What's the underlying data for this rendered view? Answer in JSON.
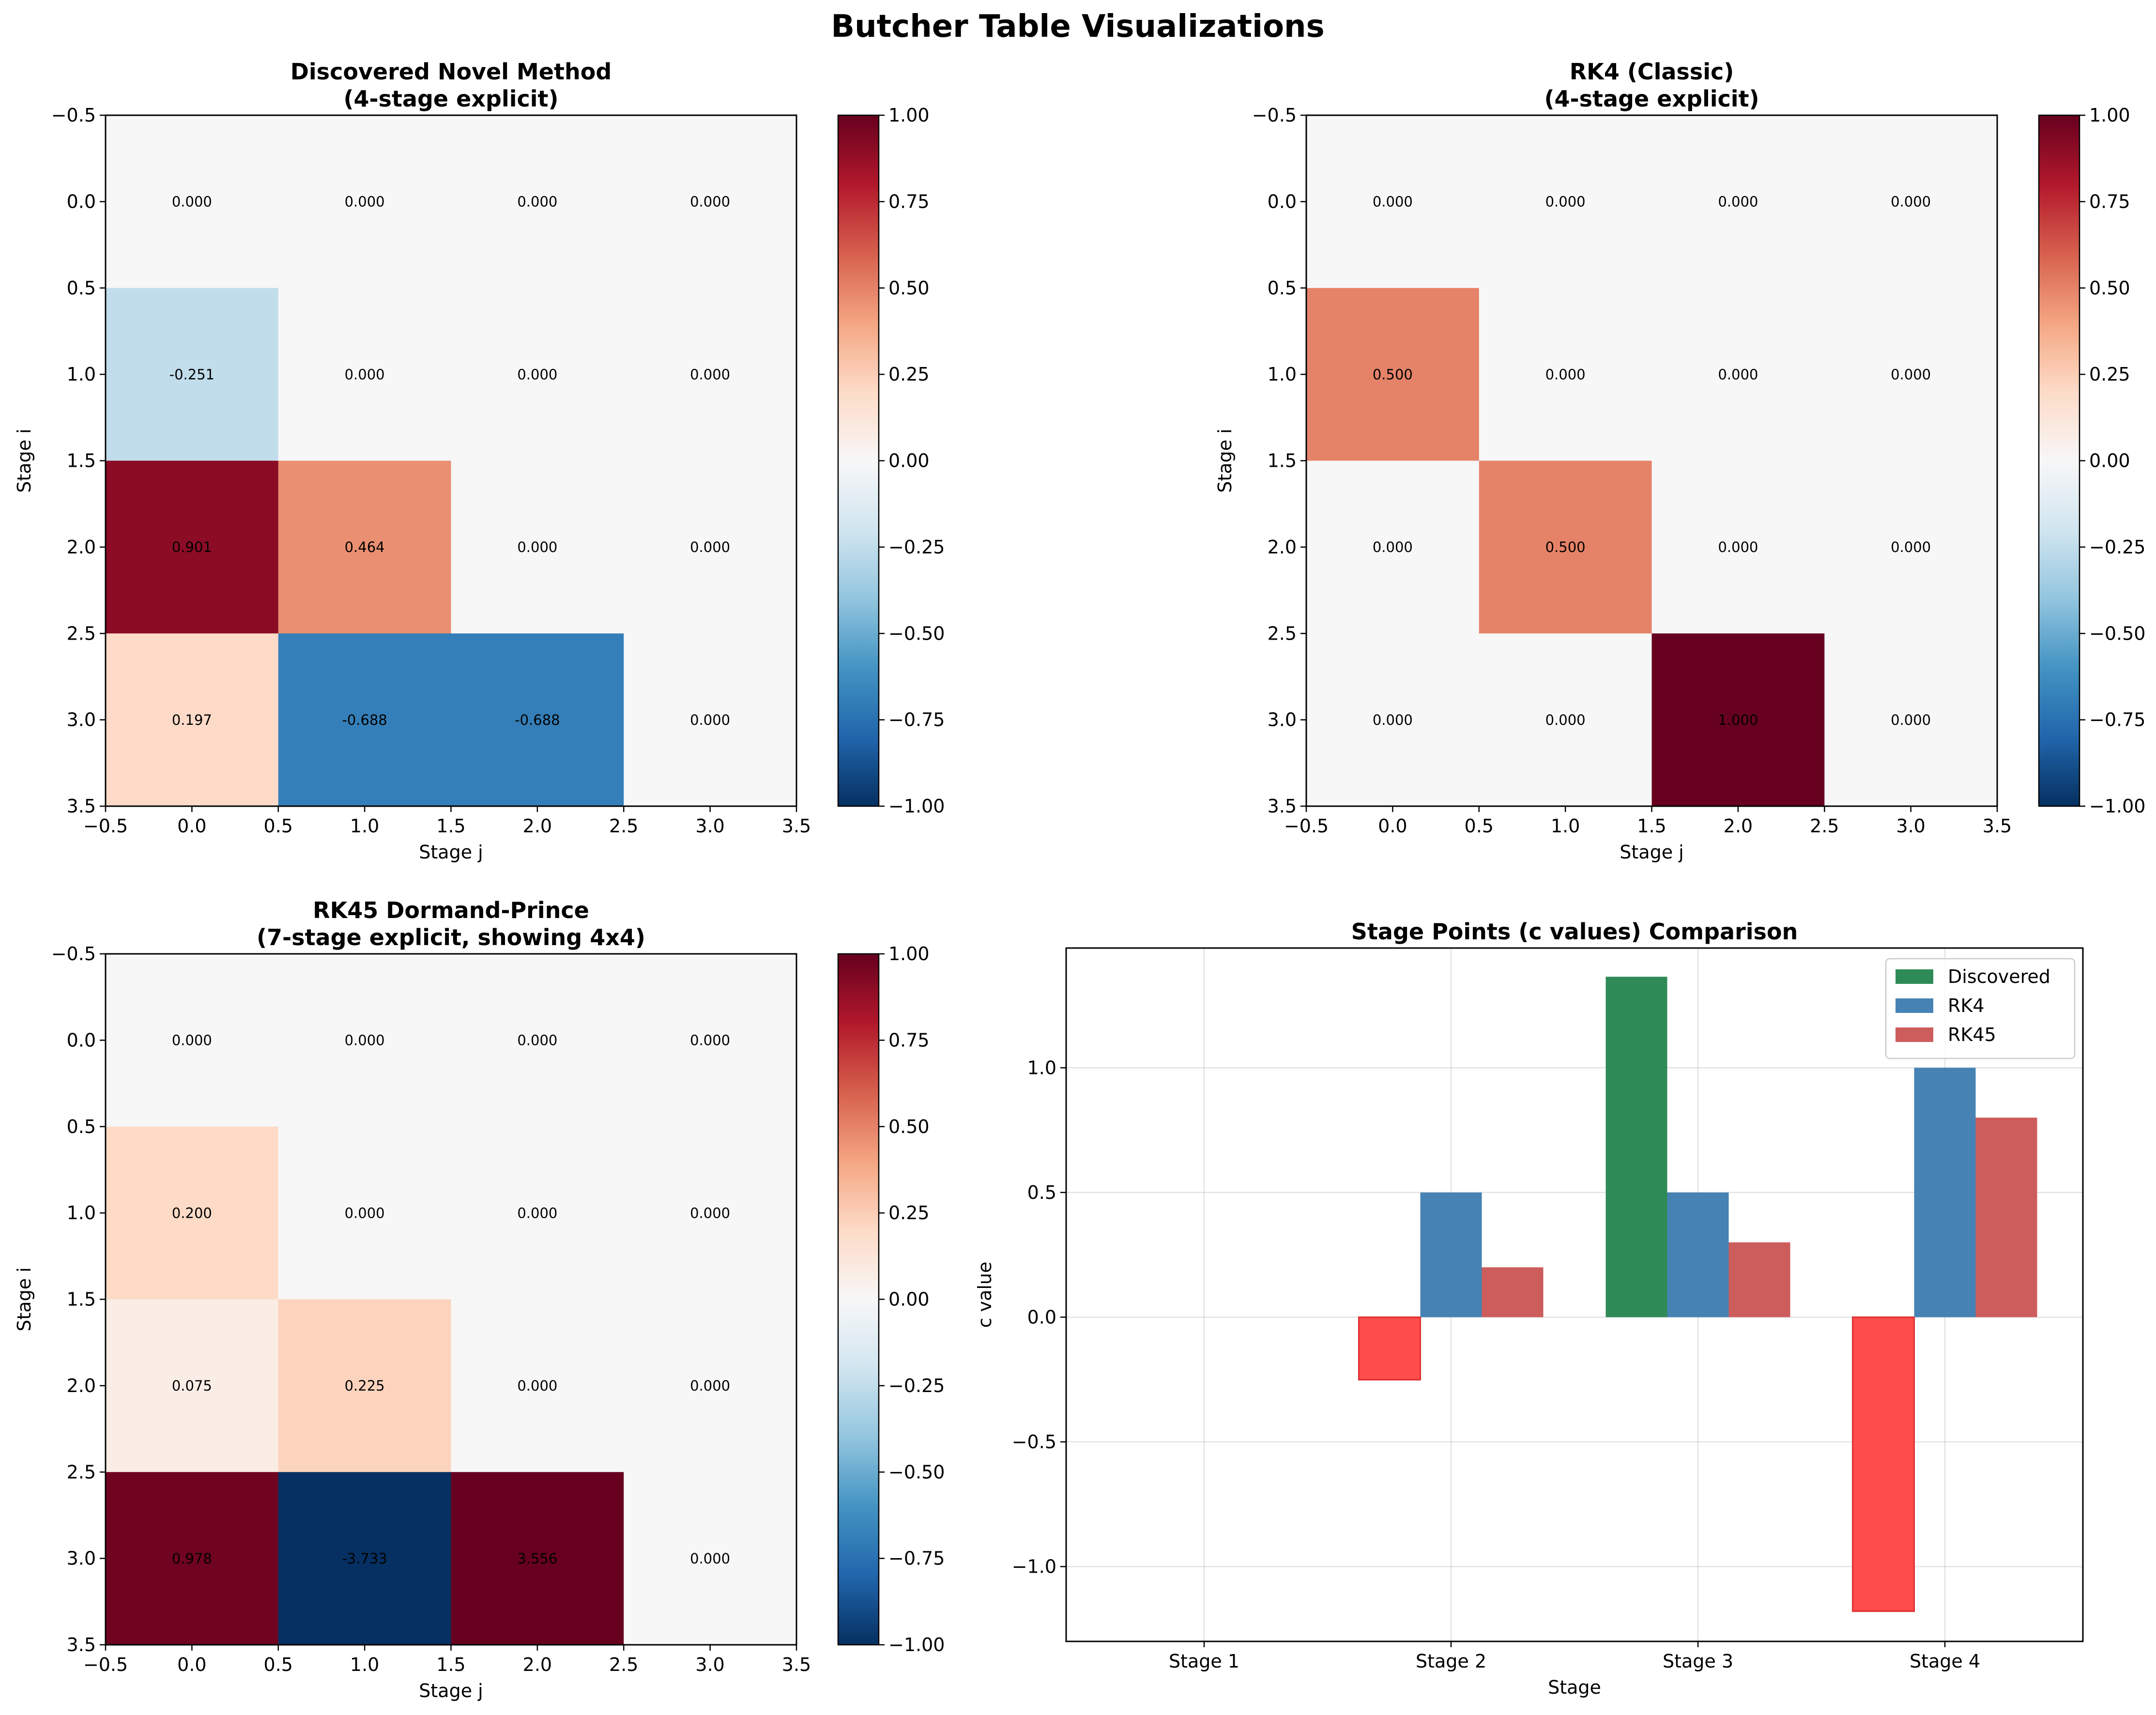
{
  "figure": {
    "suptitle": "Butcher Table Visualizations"
  },
  "colors": {
    "discovered": "#2e8b57",
    "rk4": "#4682b4",
    "rk45": "#cd5c5c",
    "discovered_negative": "#ff4c4c"
  },
  "chart_data": [
    {
      "type": "heatmap",
      "title": "Discovered Novel Method\n(4-stage explicit)",
      "xlabel": "Stage j",
      "ylabel": "Stage i",
      "matrix": [
        [
          0.0,
          0.0,
          0.0,
          0.0
        ],
        [
          -0.251,
          0.0,
          0.0,
          0.0
        ],
        [
          0.901,
          0.464,
          0.0,
          0.0
        ],
        [
          0.197,
          -0.688,
          -0.688,
          0.0
        ]
      ],
      "cell_labels": [
        [
          "0.000",
          "0.000",
          "0.000",
          "0.000"
        ],
        [
          "-0.251",
          "0.000",
          "0.000",
          "0.000"
        ],
        [
          "0.901",
          "0.464",
          "0.000",
          "0.000"
        ],
        [
          "0.197",
          "-0.688",
          "-0.688",
          "0.000"
        ]
      ],
      "x_ticks": [
        "−0.5",
        "0.0",
        "0.5",
        "1.0",
        "1.5",
        "2.0",
        "2.5",
        "3.0",
        "3.5"
      ],
      "y_ticks": [
        "−0.5",
        "0.0",
        "0.5",
        "1.0",
        "1.5",
        "2.0",
        "2.5",
        "3.0",
        "3.5"
      ],
      "colorbar_ticks": [
        "1.00",
        "0.75",
        "0.50",
        "0.25",
        "0.00",
        "−0.25",
        "−0.50",
        "−0.75",
        "−1.00"
      ],
      "vmin": -1,
      "vmax": 1,
      "colormap": "RdBu_r"
    },
    {
      "type": "heatmap",
      "title": "RK4 (Classic)\n(4-stage explicit)",
      "xlabel": "Stage j",
      "ylabel": "Stage i",
      "matrix": [
        [
          0.0,
          0.0,
          0.0,
          0.0
        ],
        [
          0.5,
          0.0,
          0.0,
          0.0
        ],
        [
          0.0,
          0.5,
          0.0,
          0.0
        ],
        [
          0.0,
          0.0,
          1.0,
          0.0
        ]
      ],
      "cell_labels": [
        [
          "0.000",
          "0.000",
          "0.000",
          "0.000"
        ],
        [
          "0.500",
          "0.000",
          "0.000",
          "0.000"
        ],
        [
          "0.000",
          "0.500",
          "0.000",
          "0.000"
        ],
        [
          "0.000",
          "0.000",
          "1.000",
          "0.000"
        ]
      ],
      "x_ticks": [
        "−0.5",
        "0.0",
        "0.5",
        "1.0",
        "1.5",
        "2.0",
        "2.5",
        "3.0",
        "3.5"
      ],
      "y_ticks": [
        "−0.5",
        "0.0",
        "0.5",
        "1.0",
        "1.5",
        "2.0",
        "2.5",
        "3.0",
        "3.5"
      ],
      "colorbar_ticks": [
        "1.00",
        "0.75",
        "0.50",
        "0.25",
        "0.00",
        "−0.25",
        "−0.50",
        "−0.75",
        "−1.00"
      ],
      "vmin": -1,
      "vmax": 1,
      "colormap": "RdBu_r"
    },
    {
      "type": "heatmap",
      "title": "RK45 Dormand-Prince\n(7-stage explicit, showing 4x4)",
      "xlabel": "Stage j",
      "ylabel": "Stage i",
      "matrix": [
        [
          0.0,
          0.0,
          0.0,
          0.0
        ],
        [
          0.2,
          0.0,
          0.0,
          0.0
        ],
        [
          0.075,
          0.225,
          0.0,
          0.0
        ],
        [
          0.978,
          -3.733,
          3.556,
          0.0
        ]
      ],
      "cell_labels": [
        [
          "0.000",
          "0.000",
          "0.000",
          "0.000"
        ],
        [
          "0.200",
          "0.000",
          "0.000",
          "0.000"
        ],
        [
          "0.075",
          "0.225",
          "0.000",
          "0.000"
        ],
        [
          "0.978",
          "-3.733",
          "3.556",
          "0.000"
        ]
      ],
      "x_ticks": [
        "−0.5",
        "0.0",
        "0.5",
        "1.0",
        "1.5",
        "2.0",
        "2.5",
        "3.0",
        "3.5"
      ],
      "y_ticks": [
        "−0.5",
        "0.0",
        "0.5",
        "1.0",
        "1.5",
        "2.0",
        "2.5",
        "3.0",
        "3.5"
      ],
      "colorbar_ticks": [
        "1.00",
        "0.75",
        "0.50",
        "0.25",
        "0.00",
        "−0.25",
        "−0.50",
        "−0.75",
        "−1.00"
      ],
      "vmin": -1,
      "vmax": 1,
      "colormap": "RdBu_r"
    },
    {
      "type": "bar",
      "title": "Stage Points (c values) Comparison",
      "xlabel": "Stage",
      "ylabel": "c value",
      "categories": [
        "Stage 1",
        "Stage 2",
        "Stage 3",
        "Stage 4"
      ],
      "series": [
        {
          "name": "Discovered",
          "values": [
            0.0,
            -0.251,
            1.365,
            -1.179
          ]
        },
        {
          "name": "RK4",
          "values": [
            0.0,
            0.5,
            0.5,
            1.0
          ]
        },
        {
          "name": "RK45",
          "values": [
            0.0,
            0.2,
            0.3,
            0.8
          ]
        }
      ],
      "y_ticks": [
        "−1.0",
        "−0.5",
        "0.0",
        "0.5",
        "1.0"
      ],
      "ylim": [
        -1.3,
        1.48
      ],
      "grid": true,
      "legend": "top-right"
    }
  ]
}
